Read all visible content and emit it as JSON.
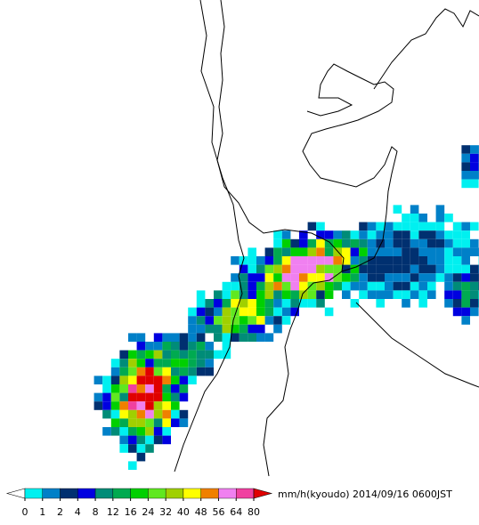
{
  "legend": {
    "ticks": [
      0,
      1,
      2,
      4,
      8,
      12,
      16,
      24,
      32,
      40,
      48,
      56,
      64,
      80
    ],
    "colors": [
      "#00f0f0",
      "#0080c8",
      "#003070",
      "#0000e0",
      "#008c78",
      "#00aa50",
      "#00d000",
      "#60e820",
      "#a0d000",
      "#ffff00",
      "#f08000",
      "#f080f0",
      "#f040a0"
    ],
    "under_color": "#ffffff",
    "over_color": "#e00000",
    "units": "mm/h(kyoudo)",
    "timestamp": "2014/09/16 0600JST"
  }
}
